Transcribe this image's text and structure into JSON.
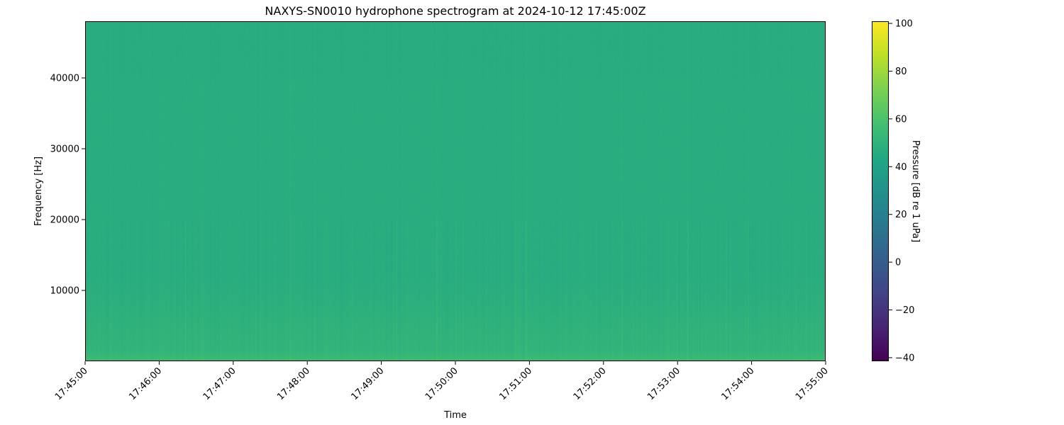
{
  "chart_data": {
    "type": "heatmap",
    "title": "NAXYS-SN0010 hydrophone spectrogram at 2024-10-12 17:45:00Z",
    "xlabel": "Time",
    "ylabel": "Frequency [Hz]",
    "colorbar_label": "Pressure [dB re 1 uPa]",
    "colormap": "viridis",
    "xlim": [
      "17:45:00",
      "17:55:00"
    ],
    "ylim": [
      0,
      48000
    ],
    "clim": [
      -41.5,
      100.9
    ],
    "x_ticks": [
      "17:45:00",
      "17:46:00",
      "17:47:00",
      "17:48:00",
      "17:49:00",
      "17:50:00",
      "17:51:00",
      "17:52:00",
      "17:53:00",
      "17:54:00",
      "17:55:00"
    ],
    "y_ticks": [
      10000,
      20000,
      30000,
      40000
    ],
    "colorbar_ticks": [
      -40,
      -20,
      0,
      20,
      40,
      60,
      80,
      100
    ],
    "typical_level_db": 47,
    "low_frequency_level_db": 55,
    "grid": false
  }
}
